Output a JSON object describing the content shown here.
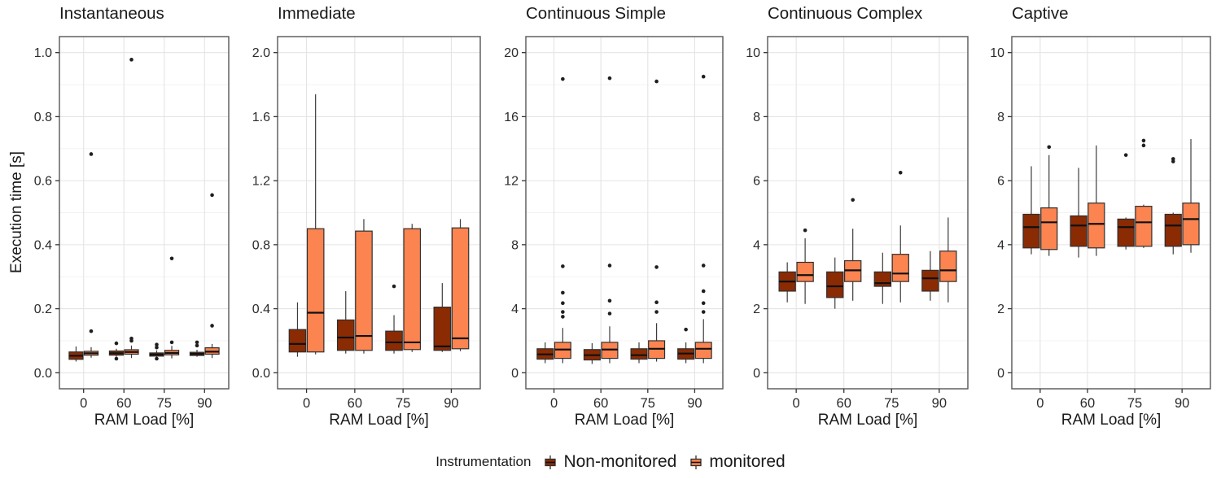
{
  "figure": {
    "y_axis_title": "Execution time [s]",
    "x_axis_title": "RAM Load [%]",
    "legend": {
      "title": "Instrumentation",
      "items": [
        {
          "label": "Non-monitored",
          "color": "#8A2B04"
        },
        {
          "label": "monitored",
          "color": "#FB8450"
        }
      ]
    },
    "colors": {
      "box_stroke": "#2F2F2F",
      "median": "#111111",
      "whisker": "#3C3C3C",
      "outlier": "#1F1F1F",
      "grid_major": "#E4E4E4",
      "grid_minor": "#F1F1F1",
      "panel_border": "#565656",
      "tick": "#333333",
      "text": "#2B2B2B"
    }
  },
  "chart_data": [
    {
      "type": "boxplot",
      "title": "Instantaneous",
      "xlabel": "RAM Load [%]",
      "ylabel": "Execution time [s]",
      "x_categories": [
        "0",
        "60",
        "75",
        "90"
      ],
      "ylim": [
        0,
        1.0
      ],
      "yticks": [
        0,
        0.2,
        0.4,
        0.6,
        0.8,
        1.0
      ],
      "ytick_labels": [
        "0.0",
        "0.2",
        "0.4",
        "0.6",
        "0.8",
        "1.0"
      ],
      "series": [
        {
          "name": "Non-monitored",
          "color": "#8A2B04",
          "boxes": [
            {
              "whisker_lo": 0.035,
              "q1": 0.042,
              "median": 0.053,
              "q3": 0.065,
              "whisker_hi": 0.082,
              "outliers": []
            },
            {
              "whisker_lo": 0.05,
              "q1": 0.055,
              "median": 0.061,
              "q3": 0.068,
              "whisker_hi": 0.075,
              "outliers": [
                0.092,
                0.044
              ]
            },
            {
              "whisker_lo": 0.045,
              "q1": 0.052,
              "median": 0.057,
              "q3": 0.062,
              "whisker_hi": 0.07,
              "outliers": [
                0.088,
                0.079,
                0.044
              ]
            },
            {
              "whisker_lo": 0.05,
              "q1": 0.054,
              "median": 0.059,
              "q3": 0.064,
              "whisker_hi": 0.072,
              "outliers": [
                0.085,
                0.095
              ]
            }
          ]
        },
        {
          "name": "monitored",
          "color": "#FB8450",
          "boxes": [
            {
              "whisker_lo": 0.047,
              "q1": 0.055,
              "median": 0.061,
              "q3": 0.067,
              "whisker_hi": 0.08,
              "outliers": [
                0.13,
                0.683
              ]
            },
            {
              "whisker_lo": 0.046,
              "q1": 0.058,
              "median": 0.065,
              "q3": 0.072,
              "whisker_hi": 0.085,
              "outliers": [
                0.1,
                0.107,
                0.978
              ]
            },
            {
              "whisker_lo": 0.045,
              "q1": 0.056,
              "median": 0.062,
              "q3": 0.07,
              "whisker_hi": 0.084,
              "outliers": [
                0.095,
                0.357
              ]
            },
            {
              "whisker_lo": 0.046,
              "q1": 0.058,
              "median": 0.066,
              "q3": 0.078,
              "whisker_hi": 0.09,
              "outliers": [
                0.147,
                0.555
              ]
            }
          ]
        }
      ]
    },
    {
      "type": "boxplot",
      "title": "Immediate",
      "xlabel": "RAM Load [%]",
      "ylabel": "Execution time [s]",
      "x_categories": [
        "0",
        "60",
        "75",
        "90"
      ],
      "ylim": [
        0,
        2.0
      ],
      "yticks": [
        0,
        0.4,
        0.8,
        1.2,
        1.6,
        2.0
      ],
      "ytick_labels": [
        "0.0",
        "0.4",
        "0.8",
        "1.2",
        "1.6",
        "2.0"
      ],
      "series": [
        {
          "name": "Non-monitored",
          "color": "#8A2B04",
          "boxes": [
            {
              "whisker_lo": 0.1,
              "q1": 0.13,
              "median": 0.18,
              "q3": 0.27,
              "whisker_hi": 0.44,
              "outliers": []
            },
            {
              "whisker_lo": 0.12,
              "q1": 0.14,
              "median": 0.22,
              "q3": 0.33,
              "whisker_hi": 0.51,
              "outliers": []
            },
            {
              "whisker_lo": 0.12,
              "q1": 0.14,
              "median": 0.19,
              "q3": 0.26,
              "whisker_hi": 0.36,
              "outliers": [
                0.54
              ]
            },
            {
              "whisker_lo": 0.13,
              "q1": 0.14,
              "median": 0.165,
              "q3": 0.41,
              "whisker_hi": 0.56,
              "outliers": []
            }
          ]
        },
        {
          "name": "monitored",
          "color": "#FB8450",
          "boxes": [
            {
              "whisker_lo": 0.115,
              "q1": 0.13,
              "median": 0.375,
              "q3": 0.9,
              "whisker_hi": 1.74,
              "outliers": []
            },
            {
              "whisker_lo": 0.12,
              "q1": 0.14,
              "median": 0.23,
              "q3": 0.885,
              "whisker_hi": 0.96,
              "outliers": []
            },
            {
              "whisker_lo": 0.13,
              "q1": 0.145,
              "median": 0.19,
              "q3": 0.9,
              "whisker_hi": 0.93,
              "outliers": []
            },
            {
              "whisker_lo": 0.135,
              "q1": 0.15,
              "median": 0.215,
              "q3": 0.905,
              "whisker_hi": 0.96,
              "outliers": []
            }
          ]
        }
      ]
    },
    {
      "type": "boxplot",
      "title": "Continuous Simple",
      "xlabel": "RAM Load [%]",
      "ylabel": "Execution time [s]",
      "x_categories": [
        "0",
        "60",
        "75",
        "90"
      ],
      "ylim": [
        0,
        20
      ],
      "yticks": [
        0,
        4,
        8,
        12,
        16,
        20
      ],
      "ytick_labels": [
        "0",
        "4",
        "8",
        "12",
        "16",
        "20"
      ],
      "series": [
        {
          "name": "Non-monitored",
          "color": "#8A2B04",
          "boxes": [
            {
              "whisker_lo": 0.6,
              "q1": 0.85,
              "median": 1.15,
              "q3": 1.5,
              "whisker_hi": 1.9,
              "outliers": []
            },
            {
              "whisker_lo": 0.55,
              "q1": 0.8,
              "median": 1.1,
              "q3": 1.45,
              "whisker_hi": 1.85,
              "outliers": []
            },
            {
              "whisker_lo": 0.6,
              "q1": 0.85,
              "median": 1.1,
              "q3": 1.5,
              "whisker_hi": 1.9,
              "outliers": []
            },
            {
              "whisker_lo": 0.6,
              "q1": 0.85,
              "median": 1.2,
              "q3": 1.5,
              "whisker_hi": 1.9,
              "outliers": [
                2.7
              ]
            }
          ]
        },
        {
          "name": "monitored",
          "color": "#FB8450",
          "boxes": [
            {
              "whisker_lo": 0.6,
              "q1": 0.9,
              "median": 1.45,
              "q3": 1.9,
              "whisker_hi": 2.8,
              "outliers": [
                3.5,
                3.8,
                4.35,
                5.0,
                6.65,
                18.35
              ]
            },
            {
              "whisker_lo": 0.6,
              "q1": 0.9,
              "median": 1.45,
              "q3": 1.9,
              "whisker_hi": 2.9,
              "outliers": [
                3.7,
                4.5,
                6.7,
                18.4
              ]
            },
            {
              "whisker_lo": 0.7,
              "q1": 0.9,
              "median": 1.5,
              "q3": 2.0,
              "whisker_hi": 3.1,
              "outliers": [
                3.8,
                4.4,
                6.6,
                18.2
              ]
            },
            {
              "whisker_lo": 0.6,
              "q1": 0.9,
              "median": 1.5,
              "q3": 1.9,
              "whisker_hi": 3.35,
              "outliers": [
                3.8,
                4.35,
                5.1,
                6.7,
                18.5
              ]
            }
          ]
        }
      ]
    },
    {
      "type": "boxplot",
      "title": "Continuous Complex",
      "xlabel": "RAM Load [%]",
      "ylabel": "Execution time [s]",
      "x_categories": [
        "0",
        "60",
        "75",
        "90"
      ],
      "ylim": [
        0,
        10
      ],
      "yticks": [
        0,
        2,
        4,
        6,
        8,
        10
      ],
      "ytick_labels": [
        "0",
        "2",
        "4",
        "6",
        "8",
        "10"
      ],
      "series": [
        {
          "name": "Non-monitored",
          "color": "#8A2B04",
          "boxes": [
            {
              "whisker_lo": 2.2,
              "q1": 2.55,
              "median": 2.85,
              "q3": 3.15,
              "whisker_hi": 3.45,
              "outliers": []
            },
            {
              "whisker_lo": 2.0,
              "q1": 2.35,
              "median": 2.7,
              "q3": 3.15,
              "whisker_hi": 3.6,
              "outliers": []
            },
            {
              "whisker_lo": 2.15,
              "q1": 2.7,
              "median": 2.8,
              "q3": 3.15,
              "whisker_hi": 3.75,
              "outliers": []
            },
            {
              "whisker_lo": 2.25,
              "q1": 2.55,
              "median": 2.95,
              "q3": 3.2,
              "whisker_hi": 3.8,
              "outliers": []
            }
          ]
        },
        {
          "name": "monitored",
          "color": "#FB8450",
          "boxes": [
            {
              "whisker_lo": 2.15,
              "q1": 2.85,
              "median": 3.05,
              "q3": 3.45,
              "whisker_hi": 4.2,
              "outliers": [
                4.45
              ]
            },
            {
              "whisker_lo": 2.25,
              "q1": 2.85,
              "median": 3.2,
              "q3": 3.5,
              "whisker_hi": 4.5,
              "outliers": [
                5.4
              ]
            },
            {
              "whisker_lo": 2.2,
              "q1": 2.85,
              "median": 3.1,
              "q3": 3.7,
              "whisker_hi": 4.6,
              "outliers": [
                6.25
              ]
            },
            {
              "whisker_lo": 2.2,
              "q1": 2.85,
              "median": 3.2,
              "q3": 3.8,
              "whisker_hi": 4.85,
              "outliers": []
            }
          ]
        }
      ]
    },
    {
      "type": "boxplot",
      "title": "Captive",
      "xlabel": "RAM Load [%]",
      "ylabel": "Execution time [s]",
      "x_categories": [
        "0",
        "60",
        "75",
        "90"
      ],
      "ylim": [
        0,
        10
      ],
      "yticks": [
        0,
        2,
        4,
        6,
        8,
        10
      ],
      "ytick_labels": [
        "0",
        "2",
        "4",
        "6",
        "8",
        "10"
      ],
      "series": [
        {
          "name": "Non-monitored",
          "color": "#8A2B04",
          "boxes": [
            {
              "whisker_lo": 3.7,
              "q1": 3.9,
              "median": 4.55,
              "q3": 4.95,
              "whisker_hi": 6.45,
              "outliers": []
            },
            {
              "whisker_lo": 3.6,
              "q1": 3.95,
              "median": 4.6,
              "q3": 4.9,
              "whisker_hi": 6.4,
              "outliers": []
            },
            {
              "whisker_lo": 3.85,
              "q1": 3.95,
              "median": 4.55,
              "q3": 4.8,
              "whisker_hi": 4.85,
              "outliers": [
                6.8
              ]
            },
            {
              "whisker_lo": 3.7,
              "q1": 3.95,
              "median": 4.6,
              "q3": 4.95,
              "whisker_hi": 5.0,
              "outliers": [
                6.6,
                6.68
              ]
            }
          ]
        },
        {
          "name": "monitored",
          "color": "#FB8450",
          "boxes": [
            {
              "whisker_lo": 3.65,
              "q1": 3.85,
              "median": 4.7,
              "q3": 5.15,
              "whisker_hi": 6.8,
              "outliers": [
                7.05
              ]
            },
            {
              "whisker_lo": 3.65,
              "q1": 3.9,
              "median": 4.65,
              "q3": 5.3,
              "whisker_hi": 7.1,
              "outliers": []
            },
            {
              "whisker_lo": 3.9,
              "q1": 3.95,
              "median": 4.7,
              "q3": 5.2,
              "whisker_hi": 5.25,
              "outliers": [
                7.1,
                7.25
              ]
            },
            {
              "whisker_lo": 3.75,
              "q1": 4.0,
              "median": 4.8,
              "q3": 5.3,
              "whisker_hi": 7.3,
              "outliers": []
            }
          ]
        }
      ]
    }
  ]
}
